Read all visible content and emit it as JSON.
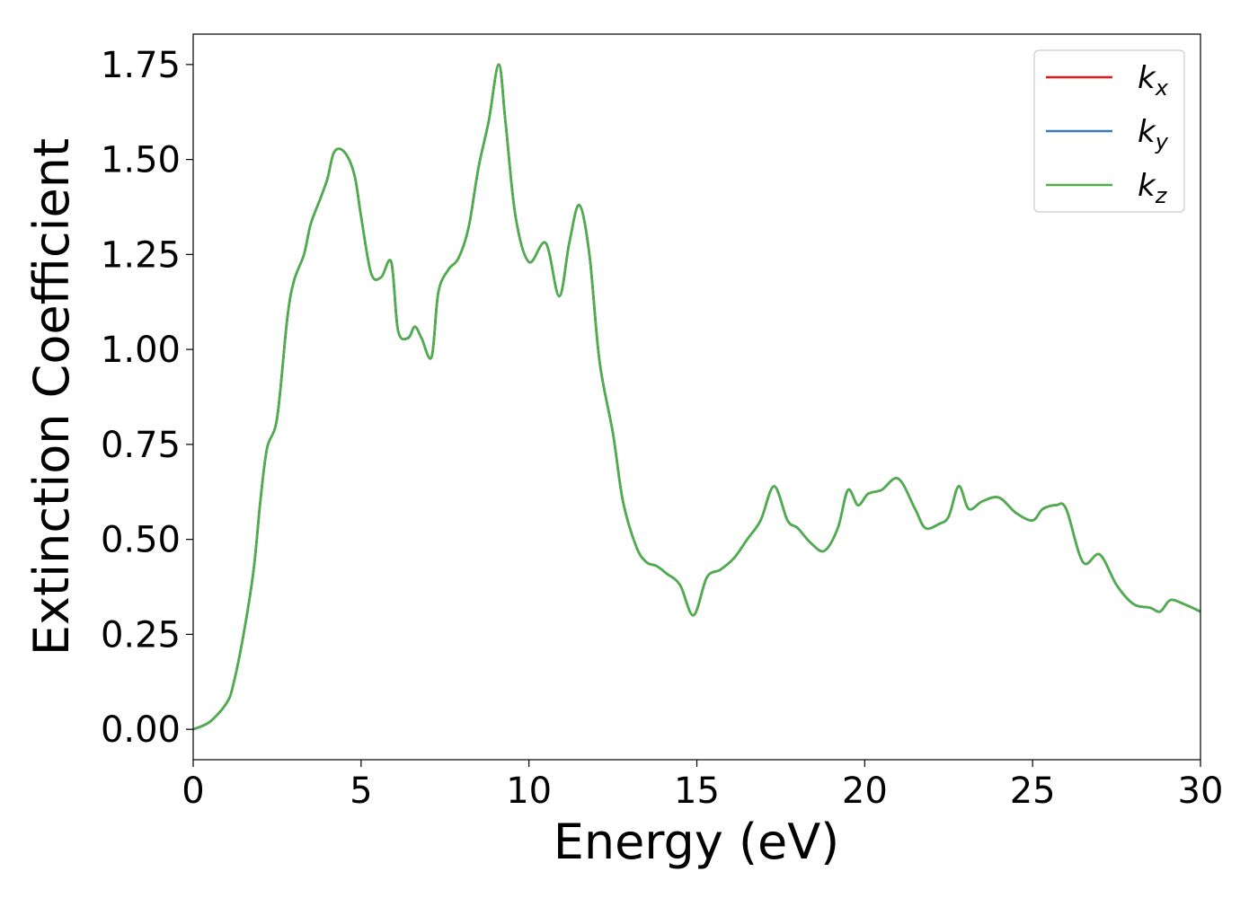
{
  "chart_data": {
    "type": "line",
    "title": "",
    "xlabel": "Energy (eV)",
    "ylabel": "Extinction Coefficient",
    "xlim": [
      0,
      30
    ],
    "ylim": [
      -0.08,
      1.83
    ],
    "xticks": [
      0,
      5,
      10,
      15,
      20,
      25,
      30
    ],
    "xtick_labels": [
      "0",
      "5",
      "10",
      "15",
      "20",
      "25",
      "30"
    ],
    "yticks": [
      0.0,
      0.25,
      0.5,
      0.75,
      1.0,
      1.25,
      1.5,
      1.75
    ],
    "ytick_labels": [
      "0.00",
      "0.25",
      "0.50",
      "0.75",
      "1.00",
      "1.25",
      "1.50",
      "1.75"
    ],
    "grid": false,
    "legend_position": "top-right",
    "x": [
      0.0,
      0.5,
      1.0,
      1.2,
      1.5,
      1.8,
      2.0,
      2.2,
      2.5,
      2.8,
      3.0,
      3.3,
      3.5,
      3.8,
      4.0,
      4.2,
      4.5,
      4.8,
      5.0,
      5.3,
      5.6,
      5.9,
      6.1,
      6.4,
      6.6,
      6.8,
      7.1,
      7.3,
      7.6,
      7.9,
      8.2,
      8.5,
      8.8,
      9.1,
      9.3,
      9.6,
      10.0,
      10.5,
      10.9,
      11.2,
      11.5,
      11.8,
      12.1,
      12.5,
      12.8,
      13.2,
      13.5,
      13.8,
      14.1,
      14.5,
      14.9,
      15.3,
      15.7,
      16.1,
      16.5,
      16.9,
      17.3,
      17.7,
      18.0,
      18.4,
      18.8,
      19.2,
      19.5,
      19.8,
      20.1,
      20.5,
      21.0,
      21.5,
      21.8,
      22.2,
      22.5,
      22.8,
      23.1,
      23.5,
      24.0,
      24.5,
      25.0,
      25.3,
      25.7,
      26.0,
      26.5,
      27.0,
      27.5,
      28.0,
      28.5,
      28.8,
      29.1,
      29.5,
      30.0
    ],
    "series": [
      {
        "name": "k",
        "subscript": "x",
        "color": "#e41a1c",
        "values": [
          0.0,
          0.02,
          0.07,
          0.12,
          0.25,
          0.42,
          0.6,
          0.74,
          0.82,
          1.08,
          1.18,
          1.25,
          1.33,
          1.4,
          1.45,
          1.52,
          1.52,
          1.46,
          1.35,
          1.2,
          1.19,
          1.23,
          1.05,
          1.03,
          1.06,
          1.03,
          0.98,
          1.15,
          1.21,
          1.24,
          1.32,
          1.48,
          1.6,
          1.75,
          1.6,
          1.35,
          1.23,
          1.28,
          1.14,
          1.28,
          1.38,
          1.25,
          0.97,
          0.78,
          0.6,
          0.48,
          0.44,
          0.43,
          0.41,
          0.38,
          0.3,
          0.4,
          0.42,
          0.45,
          0.5,
          0.55,
          0.64,
          0.55,
          0.53,
          0.49,
          0.47,
          0.53,
          0.63,
          0.59,
          0.62,
          0.63,
          0.66,
          0.58,
          0.53,
          0.54,
          0.56,
          0.64,
          0.58,
          0.6,
          0.61,
          0.57,
          0.55,
          0.58,
          0.59,
          0.58,
          0.44,
          0.46,
          0.38,
          0.33,
          0.32,
          0.31,
          0.34,
          0.33,
          0.31
        ]
      },
      {
        "name": "k",
        "subscript": "y",
        "color": "#377eb8",
        "values": [
          0.0,
          0.02,
          0.07,
          0.12,
          0.25,
          0.42,
          0.6,
          0.74,
          0.82,
          1.08,
          1.18,
          1.25,
          1.33,
          1.4,
          1.45,
          1.52,
          1.52,
          1.46,
          1.35,
          1.2,
          1.19,
          1.23,
          1.05,
          1.03,
          1.06,
          1.03,
          0.98,
          1.15,
          1.21,
          1.24,
          1.32,
          1.48,
          1.6,
          1.75,
          1.6,
          1.35,
          1.23,
          1.28,
          1.14,
          1.28,
          1.38,
          1.25,
          0.97,
          0.78,
          0.6,
          0.48,
          0.44,
          0.43,
          0.41,
          0.38,
          0.3,
          0.4,
          0.42,
          0.45,
          0.5,
          0.55,
          0.64,
          0.55,
          0.53,
          0.49,
          0.47,
          0.53,
          0.63,
          0.59,
          0.62,
          0.63,
          0.66,
          0.58,
          0.53,
          0.54,
          0.56,
          0.64,
          0.58,
          0.6,
          0.61,
          0.57,
          0.55,
          0.58,
          0.59,
          0.58,
          0.44,
          0.46,
          0.38,
          0.33,
          0.32,
          0.31,
          0.34,
          0.33,
          0.31
        ]
      },
      {
        "name": "k",
        "subscript": "z",
        "color": "#4daf4a",
        "values": [
          0.0,
          0.02,
          0.07,
          0.12,
          0.25,
          0.42,
          0.6,
          0.74,
          0.82,
          1.08,
          1.18,
          1.25,
          1.33,
          1.4,
          1.45,
          1.52,
          1.52,
          1.46,
          1.35,
          1.2,
          1.19,
          1.23,
          1.05,
          1.03,
          1.06,
          1.03,
          0.98,
          1.15,
          1.21,
          1.24,
          1.32,
          1.48,
          1.6,
          1.75,
          1.6,
          1.35,
          1.23,
          1.28,
          1.14,
          1.28,
          1.38,
          1.25,
          0.97,
          0.78,
          0.6,
          0.48,
          0.44,
          0.43,
          0.41,
          0.38,
          0.3,
          0.4,
          0.42,
          0.45,
          0.5,
          0.55,
          0.64,
          0.55,
          0.53,
          0.49,
          0.47,
          0.53,
          0.63,
          0.59,
          0.62,
          0.63,
          0.66,
          0.58,
          0.53,
          0.54,
          0.56,
          0.64,
          0.58,
          0.6,
          0.61,
          0.57,
          0.55,
          0.58,
          0.59,
          0.58,
          0.44,
          0.46,
          0.38,
          0.33,
          0.32,
          0.31,
          0.34,
          0.33,
          0.31
        ]
      }
    ]
  }
}
